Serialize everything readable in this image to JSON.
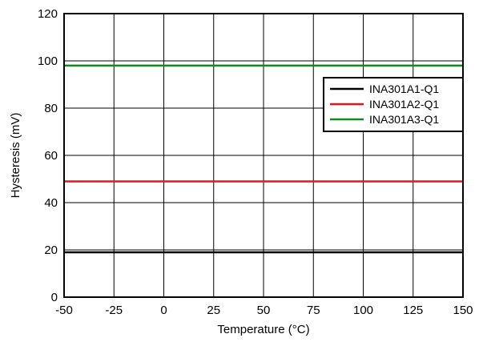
{
  "chart_data": {
    "type": "line",
    "title": "",
    "xlabel": "Temperature (°C)",
    "ylabel": "Hysteresis (mV)",
    "xlim": [
      -50,
      150
    ],
    "ylim": [
      0,
      120
    ],
    "x_ticks": [
      -50,
      -25,
      0,
      25,
      50,
      75,
      100,
      125,
      150
    ],
    "y_ticks": [
      0,
      20,
      40,
      60,
      80,
      100,
      120
    ],
    "grid": true,
    "legend_position": "top-right",
    "series": [
      {
        "name": "INA301A1-Q1",
        "color": "#000000",
        "x": [
          -50,
          150
        ],
        "y": [
          19,
          19
        ]
      },
      {
        "name": "INA301A2-Q1",
        "color": "#e8161b",
        "x": [
          -50,
          150
        ],
        "y": [
          49,
          49
        ]
      },
      {
        "name": "INA301A3-Q1",
        "color": "#138a1b",
        "x": [
          -50,
          150
        ],
        "y": [
          98,
          98
        ]
      }
    ]
  }
}
